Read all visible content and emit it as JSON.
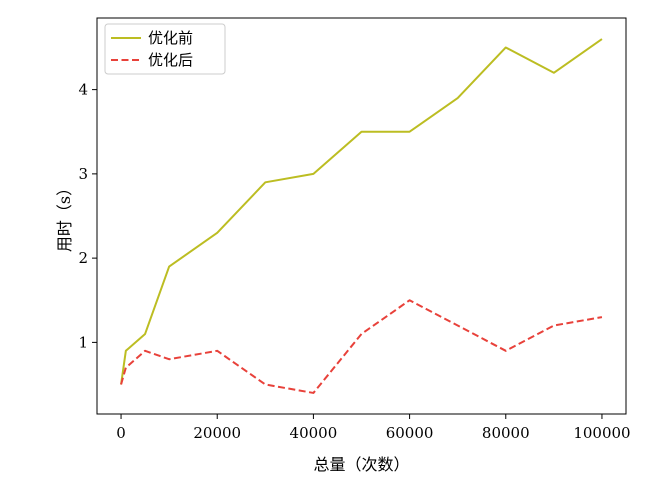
{
  "chart_data": {
    "type": "line",
    "xlabel": "总量（次数）",
    "ylabel": "用时（s）",
    "xlim": [
      -5000,
      105000
    ],
    "ylim": [
      0.15,
      4.85
    ],
    "xticks": [
      0,
      20000,
      40000,
      60000,
      80000,
      100000
    ],
    "yticks": [
      1,
      2,
      3,
      4
    ],
    "grid": false,
    "legend_position": "top-left",
    "series": [
      {
        "name": "优化前",
        "color": "#bcbd22",
        "linestyle": "solid",
        "x": [
          0,
          1000,
          5000,
          10000,
          20000,
          30000,
          40000,
          50000,
          60000,
          70000,
          80000,
          90000,
          100000
        ],
        "y": [
          0.5,
          0.9,
          1.1,
          1.9,
          2.3,
          2.9,
          3.0,
          3.5,
          3.5,
          3.9,
          4.5,
          4.2,
          4.6
        ]
      },
      {
        "name": "优化后",
        "color": "#e8413a",
        "linestyle": "dashed",
        "x": [
          0,
          1000,
          5000,
          10000,
          20000,
          30000,
          40000,
          50000,
          60000,
          70000,
          80000,
          90000,
          100000
        ],
        "y": [
          0.5,
          0.7,
          0.9,
          0.8,
          0.9,
          0.5,
          0.4,
          1.1,
          1.5,
          1.2,
          0.9,
          1.2,
          1.3
        ]
      }
    ]
  }
}
